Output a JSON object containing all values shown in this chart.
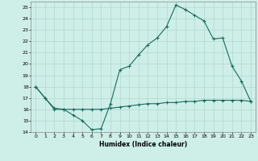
{
  "line1_x": [
    0,
    1,
    2,
    3,
    4,
    5,
    6,
    7,
    8,
    9,
    10,
    11,
    12,
    13,
    14,
    15,
    16,
    17,
    18,
    19,
    20,
    21,
    22,
    23
  ],
  "line1_y": [
    18,
    17,
    16,
    16,
    15.5,
    15,
    14.2,
    14.3,
    16.5,
    19.5,
    19.8,
    20.8,
    21.7,
    22.3,
    23.3,
    25.2,
    24.8,
    24.3,
    23.8,
    22.2,
    22.3,
    19.8,
    18.5,
    16.7
  ],
  "line2_x": [
    0,
    1,
    2,
    3,
    4,
    5,
    6,
    7,
    8,
    9,
    10,
    11,
    12,
    13,
    14,
    15,
    16,
    17,
    18,
    19,
    20,
    21,
    22,
    23
  ],
  "line2_y": [
    18,
    17,
    16.1,
    16.0,
    16.0,
    16.0,
    16.0,
    16.0,
    16.1,
    16.2,
    16.3,
    16.4,
    16.5,
    16.5,
    16.6,
    16.6,
    16.7,
    16.7,
    16.8,
    16.8,
    16.8,
    16.8,
    16.8,
    16.7
  ],
  "line_color": "#1a6b5e",
  "bg_color": "#ceeee8",
  "grid_color": "#b0d8d2",
  "xlabel": "Humidex (Indice chaleur)",
  "ylim": [
    14,
    25.5
  ],
  "xlim": [
    -0.5,
    23.5
  ],
  "yticks": [
    14,
    15,
    16,
    17,
    18,
    19,
    20,
    21,
    22,
    23,
    24,
    25
  ],
  "xticks": [
    0,
    1,
    2,
    3,
    4,
    5,
    6,
    7,
    8,
    9,
    10,
    11,
    12,
    13,
    14,
    15,
    16,
    17,
    18,
    19,
    20,
    21,
    22,
    23
  ]
}
